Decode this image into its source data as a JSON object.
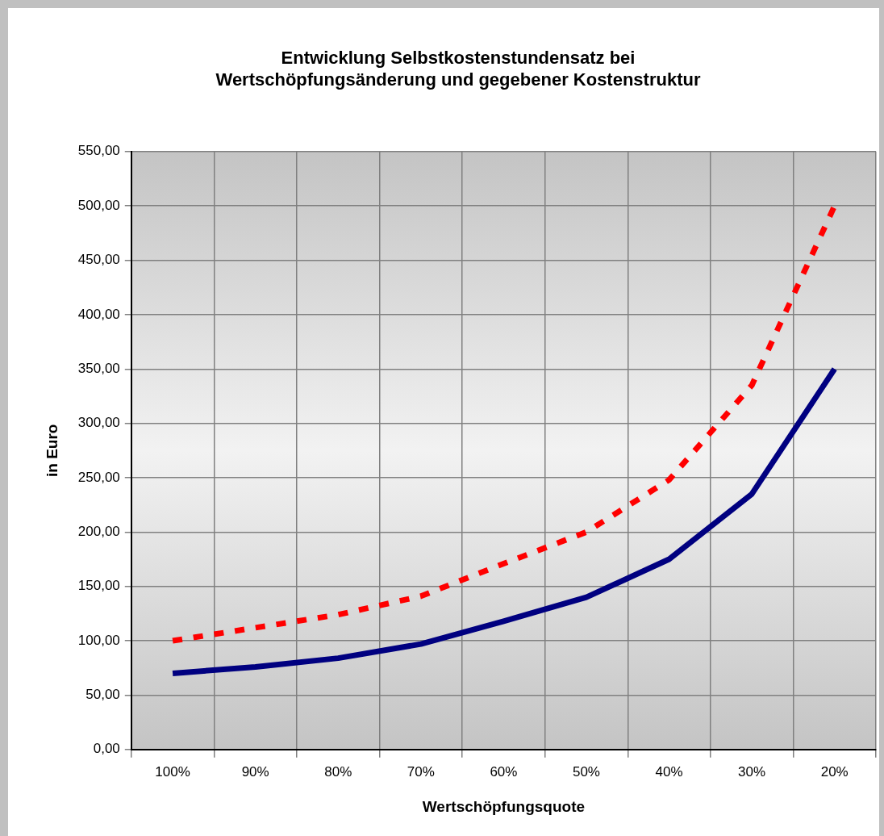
{
  "chart_data": {
    "type": "line",
    "title": "Entwicklung Selbstkostenstundensatz bei\nWertschöpfungsänderung und gegebener Kostenstruktur",
    "xlabel": "Wertschöpfungsquote",
    "ylabel": "in Euro",
    "categories": [
      "100%",
      "90%",
      "80%",
      "70%",
      "60%",
      "50%",
      "40%",
      "30%",
      "20%"
    ],
    "series": [
      {
        "color": "#ff0000",
        "line_style": "dashed",
        "values": [
          100,
          112,
          124,
          141,
          171,
          200,
          248,
          335,
          500
        ]
      },
      {
        "color": "#000080",
        "line_style": "solid",
        "values": [
          70,
          76,
          84,
          97,
          118,
          140,
          175,
          235,
          350
        ]
      }
    ],
    "ylim": [
      0,
      550
    ],
    "yticks": [
      {
        "value": 0,
        "label": "0,00"
      },
      {
        "value": 50,
        "label": "50,00"
      },
      {
        "value": 100,
        "label": "100,00"
      },
      {
        "value": 150,
        "label": "150,00"
      },
      {
        "value": 200,
        "label": "200,00"
      },
      {
        "value": 250,
        "label": "250,00"
      },
      {
        "value": 300,
        "label": "300,00"
      },
      {
        "value": 350,
        "label": "350,00"
      },
      {
        "value": 400,
        "label": "400,00"
      },
      {
        "value": 450,
        "label": "450,00"
      },
      {
        "value": 500,
        "label": "500,00"
      },
      {
        "value": 550,
        "label": "550,00"
      }
    ],
    "grid": true,
    "legend": false,
    "marker": "none"
  }
}
